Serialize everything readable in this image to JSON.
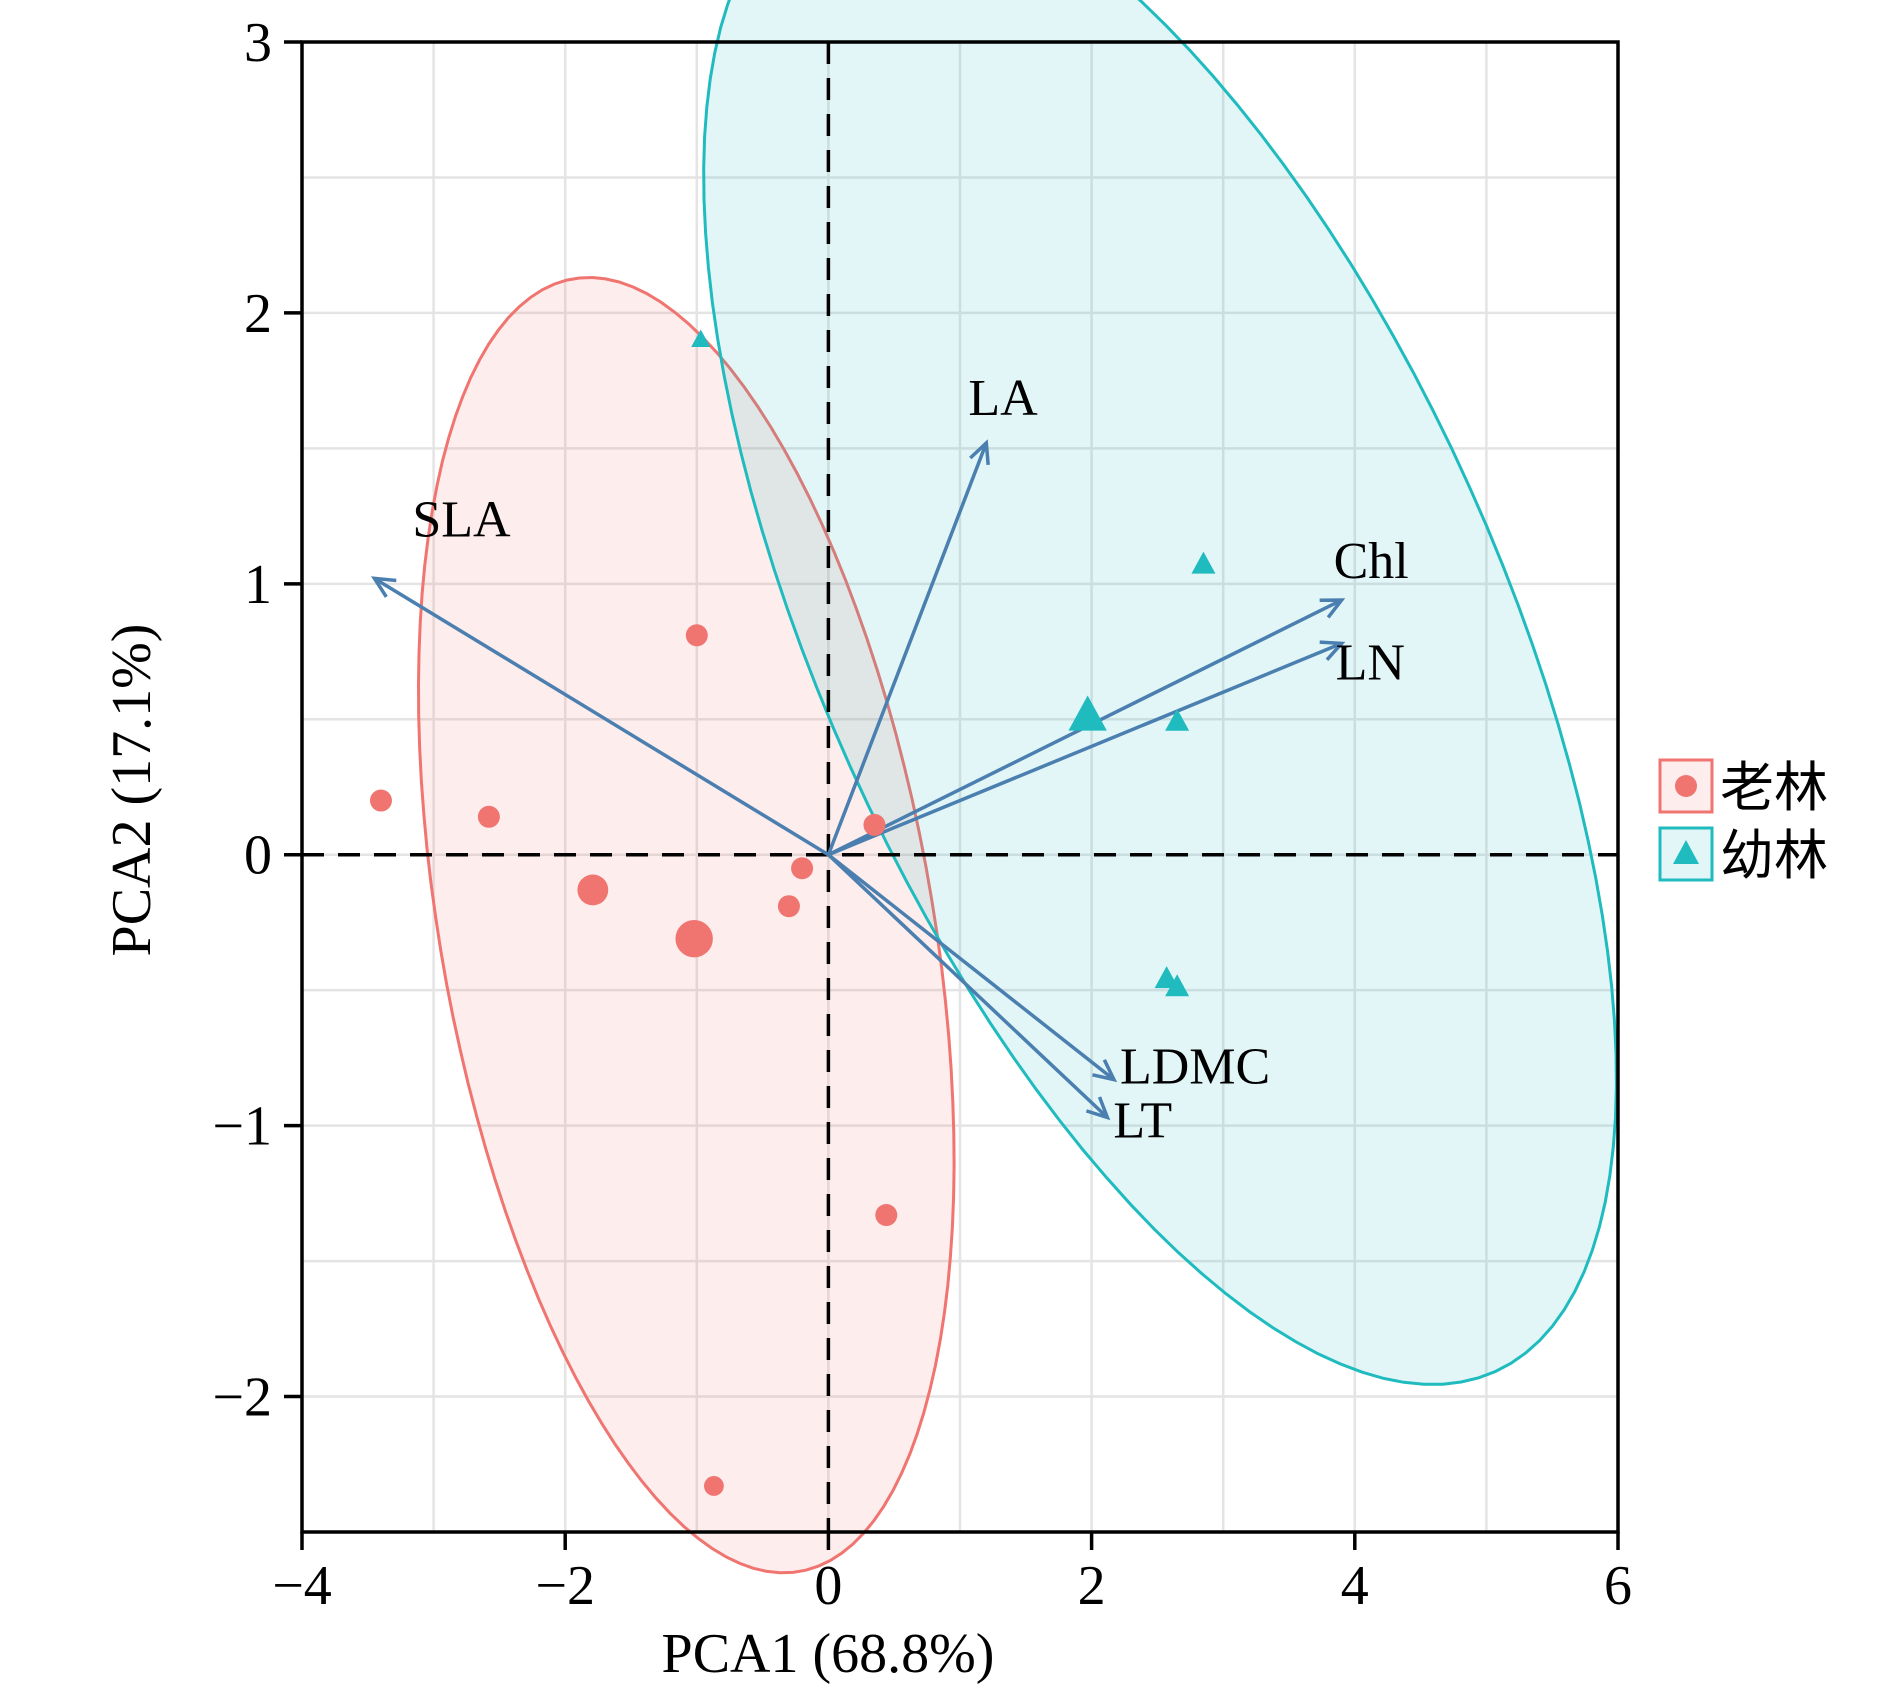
{
  "chart_data": {
    "type": "scatter",
    "subtype": "pca-biplot",
    "xlabel": "PCA1 (68.8%)",
    "ylabel": "PCA2 (17.1%)",
    "xlim": [
      -4,
      6
    ],
    "ylim": [
      -2.5,
      3
    ],
    "x_ticks": [
      -4,
      -2,
      0,
      2,
      4,
      6
    ],
    "y_ticks": [
      -2,
      -1,
      0,
      1,
      2,
      3
    ],
    "x_tick_labels": [
      "−4",
      "−2",
      "0",
      "2",
      "4",
      "6"
    ],
    "y_tick_labels": [
      "−2",
      "−1",
      "0",
      "1",
      "2",
      "3"
    ],
    "grid": true,
    "reference_lines": [
      {
        "axis": "x",
        "value": 0,
        "style": "dashed"
      },
      {
        "axis": "y",
        "value": 0,
        "style": "dashed"
      }
    ],
    "legend": {
      "position": "right"
    },
    "series": [
      {
        "name": "老林",
        "marker": "circle",
        "color": "#F07470",
        "points": [
          {
            "x": -3.4,
            "y": 0.2,
            "size": 1
          },
          {
            "x": -2.58,
            "y": 0.14,
            "size": 1
          },
          {
            "x": -1.79,
            "y": -0.13,
            "size": 1.4
          },
          {
            "x": -1.0,
            "y": 0.81,
            "size": 1
          },
          {
            "x": -1.02,
            "y": -0.31,
            "size": 1.7
          },
          {
            "x": -0.2,
            "y": -0.05,
            "size": 1
          },
          {
            "x": -0.3,
            "y": -0.19,
            "size": 1
          },
          {
            "x": 0.35,
            "y": 0.11,
            "size": 1
          },
          {
            "x": 0.44,
            "y": -1.33,
            "size": 1
          },
          {
            "x": -0.87,
            "y": -2.33,
            "size": 0.9
          }
        ],
        "ellipse": {
          "cx": -1.08,
          "cy": -0.26,
          "rx": 2.62,
          "ry": 1.73,
          "angle_deg": -57
        }
      },
      {
        "name": "幼林",
        "marker": "triangle",
        "color": "#1FBBBF",
        "points": [
          {
            "x": -0.97,
            "y": 1.9,
            "size": 0.8
          },
          {
            "x": 2.85,
            "y": 1.07,
            "size": 1
          },
          {
            "x": 1.97,
            "y": 0.51,
            "size": 1.6
          },
          {
            "x": 2.65,
            "y": 0.49,
            "size": 1
          },
          {
            "x": 2.57,
            "y": -0.46,
            "size": 1
          },
          {
            "x": 2.65,
            "y": -0.49,
            "size": 1
          }
        ],
        "ellipse": {
          "cx": 2.52,
          "cy": 0.84,
          "rx": 4.01,
          "ry": 1.94,
          "angle_deg": -35
        }
      }
    ],
    "loadings": [
      {
        "label": "SLA",
        "x": -3.45,
        "y": 1.02
      },
      {
        "label": "LA",
        "x": 1.2,
        "y": 1.52
      },
      {
        "label": "Chl",
        "x": 3.9,
        "y": 0.94
      },
      {
        "label": "LN",
        "x": 3.9,
        "y": 0.78
      },
      {
        "label": "LDMC",
        "x": 2.17,
        "y": -0.83
      },
      {
        "label": "LT",
        "x": 2.12,
        "y": -0.97
      }
    ],
    "loading_color": "#4A7FB0"
  }
}
